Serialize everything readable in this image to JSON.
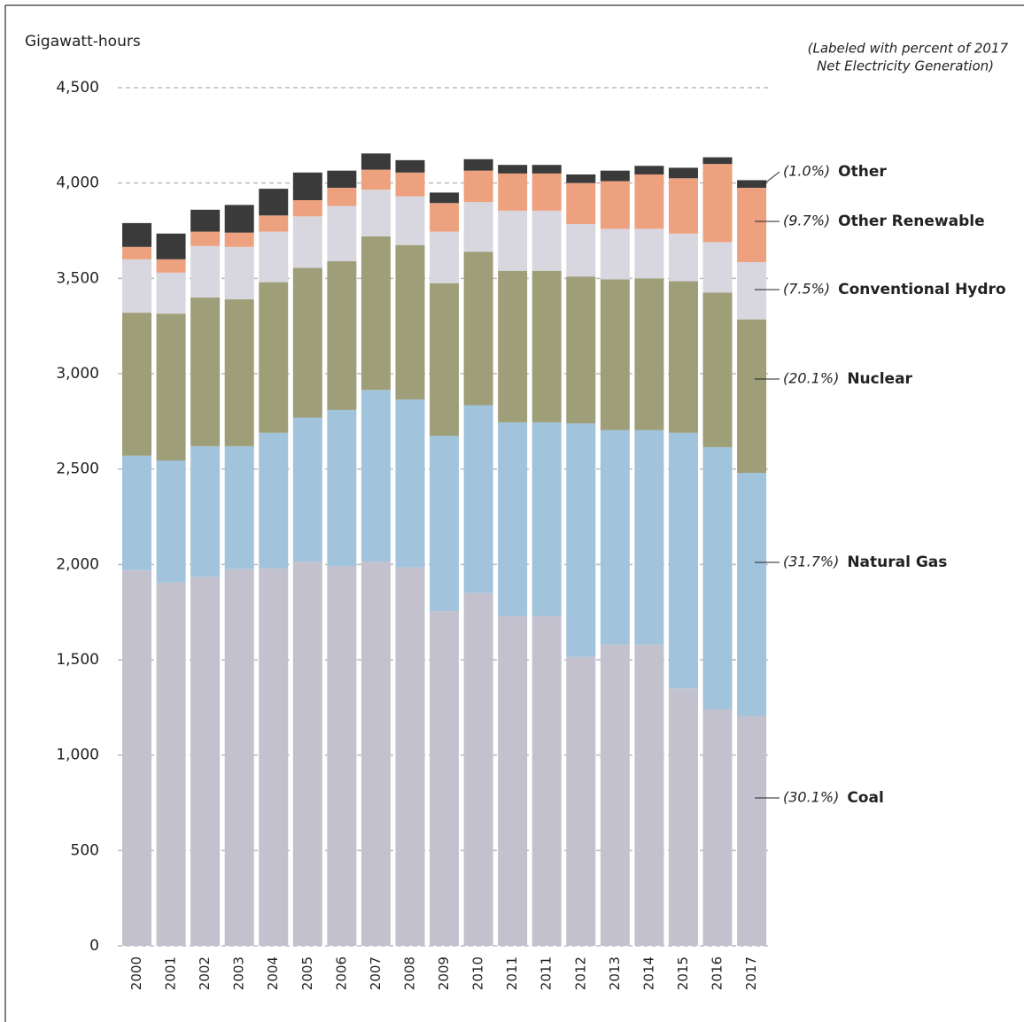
{
  "chart_data": {
    "type": "stacked_bar",
    "y_axis_label": "Gigawatt-hours",
    "note": [
      "(Labeled with percent of 2017",
      "Net Electricity Generation)"
    ],
    "categories": [
      "2000",
      "2001",
      "2002",
      "2003",
      "2004",
      "2005",
      "2006",
      "2007",
      "2008",
      "2009",
      "2010",
      "2011",
      "2011",
      "2012",
      "2013",
      "2014",
      "2015",
      "2016",
      "2017"
    ],
    "ylim": [
      0,
      4500
    ],
    "yticks": [
      0,
      {
        "value": 500,
        "label": "500"
      },
      {
        "value": 1000,
        "label": "1,000"
      },
      {
        "value": 1500,
        "label": "1,500"
      },
      {
        "value": 2000,
        "label": "2,000"
      },
      {
        "value": 2500,
        "label": "2,500"
      },
      {
        "value": 3000,
        "label": "3,000"
      },
      {
        "value": 3500,
        "label": "3,500"
      },
      {
        "value": 4000,
        "label": "4,000"
      },
      {
        "value": 4500,
        "label": "4,500"
      }
    ],
    "grid": true,
    "series": [
      {
        "name": "Coal",
        "share_label": "(30.1%)",
        "color": "#c3c1cd",
        "values": [
          1970,
          1905,
          1935,
          1975,
          1980,
          2015,
          1990,
          2015,
          1985,
          1755,
          1850,
          1730,
          1730,
          1515,
          1580,
          1580,
          1350,
          1240,
          1205
        ]
      },
      {
        "name": "Natural Gas",
        "share_label": "(31.7%)",
        "color": "#a1c4dc",
        "values": [
          600,
          640,
          685,
          645,
          710,
          755,
          820,
          900,
          880,
          920,
          985,
          1015,
          1015,
          1225,
          1125,
          1125,
          1340,
          1375,
          1275
        ]
      },
      {
        "name": "Nuclear",
        "share_label": "(20.1%)",
        "color": "#9e9e78",
        "values": [
          750,
          770,
          780,
          770,
          790,
          785,
          780,
          805,
          810,
          800,
          805,
          795,
          795,
          770,
          790,
          795,
          795,
          810,
          805
        ]
      },
      {
        "name": "Conventional Hydro",
        "share_label": "(7.5%)",
        "color": "#d8d7e0",
        "values": [
          280,
          215,
          270,
          275,
          265,
          270,
          290,
          245,
          255,
          270,
          260,
          315,
          315,
          275,
          265,
          260,
          250,
          265,
          300
        ]
      },
      {
        "name": "Other Renewable",
        "share_label": "(9.7%)",
        "color": "#eea17f",
        "values": [
          65,
          70,
          75,
          75,
          85,
          85,
          95,
          105,
          125,
          150,
          165,
          195,
          195,
          215,
          250,
          285,
          290,
          410,
          390
        ]
      },
      {
        "name": "Other",
        "share_label": "(1.0%)",
        "color": "#3a3a3a",
        "values": [
          125,
          135,
          115,
          145,
          140,
          145,
          90,
          85,
          65,
          55,
          60,
          45,
          45,
          45,
          55,
          45,
          55,
          35,
          40
        ]
      }
    ]
  }
}
